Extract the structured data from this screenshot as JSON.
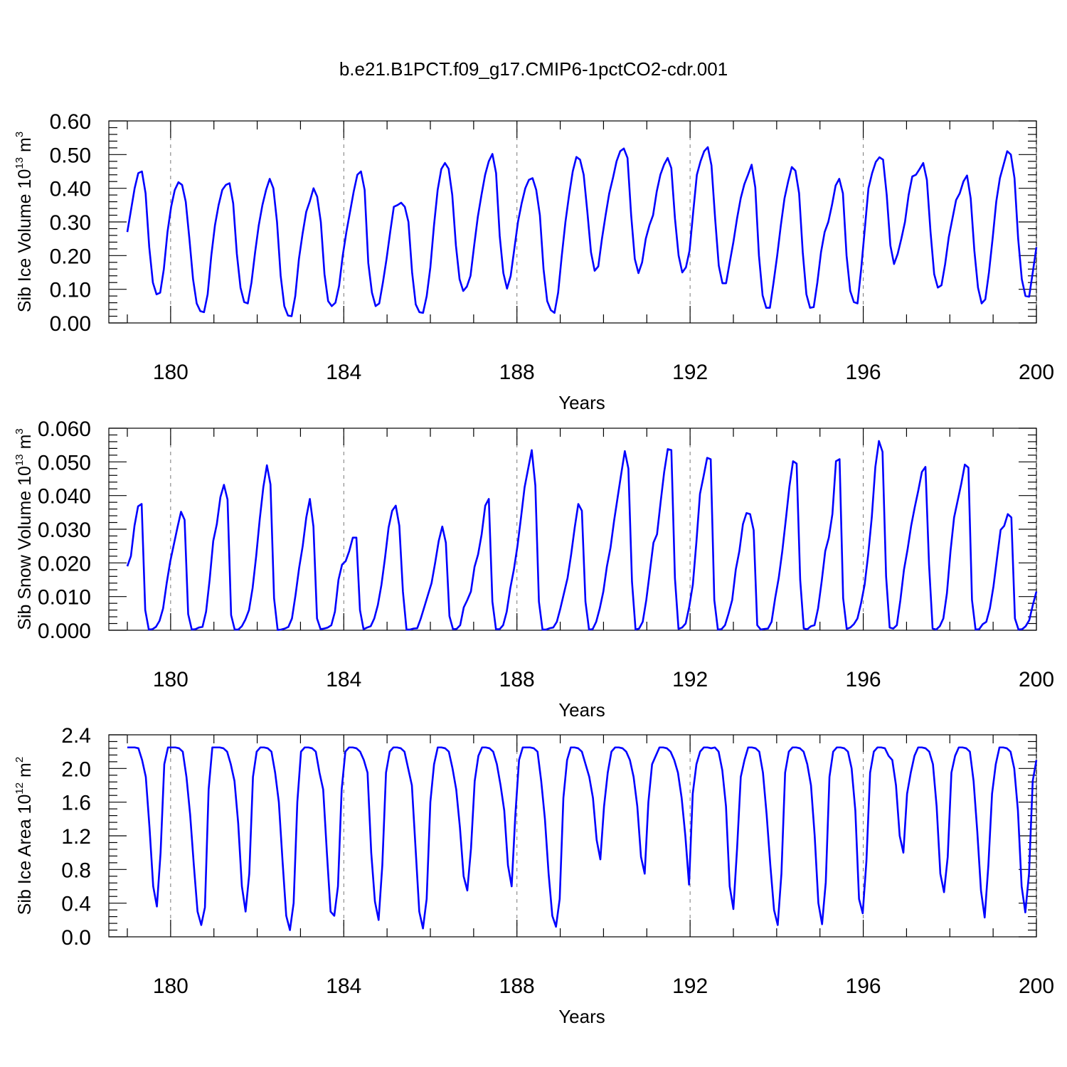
{
  "title": "b.e21.B1PCT.f09_g17.CMIP6-1pctCO2-cdr.001",
  "colors": {
    "series": "#0000ff",
    "frame": "#000000",
    "grid": "#777777"
  },
  "chart_data": [
    {
      "type": "line",
      "ylabel": "Sib Ice Volume",
      "yunit_base": "10",
      "yunit_exp": "13",
      "yunit_tail": "m",
      "yunit_tail_exp": "3",
      "xlabel": "Years",
      "xlim": [
        179,
        200
      ],
      "ylim": [
        0,
        0.6
      ],
      "xticks": [
        "180",
        "184",
        "188",
        "192",
        "196",
        "200"
      ],
      "yticks": [
        "0.00",
        "0.10",
        "0.20",
        "0.30",
        "0.40",
        "0.50",
        "0.60"
      ],
      "grid": "vertical dashed at labeled x ticks",
      "series": [
        {
          "values": [
            0.27,
            0.335,
            0.4,
            0.445,
            0.45,
            0.385,
            0.225,
            0.12,
            0.085,
            0.09,
            0.16,
            0.27,
            0.345,
            0.395,
            0.418,
            0.41,
            0.36,
            0.25,
            0.13,
            0.058,
            0.035,
            0.032,
            0.085,
            0.2,
            0.29,
            0.35,
            0.395,
            0.41,
            0.415,
            0.355,
            0.205,
            0.105,
            0.062,
            0.058,
            0.12,
            0.21,
            0.29,
            0.35,
            0.395,
            0.428,
            0.4,
            0.3,
            0.14,
            0.05,
            0.022,
            0.02,
            0.08,
            0.19,
            0.265,
            0.33,
            0.362,
            0.4,
            0.375,
            0.3,
            0.145,
            0.065,
            0.05,
            0.06,
            0.11,
            0.2,
            0.27,
            0.33,
            0.39,
            0.44,
            0.45,
            0.395,
            0.178,
            0.09,
            0.05,
            0.058,
            0.12,
            0.19,
            0.27,
            0.345,
            0.35,
            0.357,
            0.345,
            0.3,
            0.15,
            0.055,
            0.032,
            0.03,
            0.08,
            0.165,
            0.29,
            0.395,
            0.457,
            0.475,
            0.458,
            0.38,
            0.23,
            0.13,
            0.095,
            0.108,
            0.14,
            0.23,
            0.315,
            0.38,
            0.44,
            0.48,
            0.502,
            0.445,
            0.258,
            0.148,
            0.102,
            0.14,
            0.22,
            0.3,
            0.355,
            0.4,
            0.425,
            0.43,
            0.395,
            0.32,
            0.16,
            0.065,
            0.038,
            0.03,
            0.09,
            0.2,
            0.3,
            0.38,
            0.45,
            0.493,
            0.485,
            0.44,
            0.33,
            0.21,
            0.155,
            0.168,
            0.25,
            0.32,
            0.385,
            0.43,
            0.48,
            0.51,
            0.518,
            0.49,
            0.32,
            0.19,
            0.148,
            0.18,
            0.25,
            0.29,
            0.32,
            0.39,
            0.44,
            0.47,
            0.49,
            0.46,
            0.31,
            0.2,
            0.15,
            0.165,
            0.215,
            0.33,
            0.44,
            0.48,
            0.51,
            0.522,
            0.468,
            0.31,
            0.17,
            0.118,
            0.118,
            0.18,
            0.24,
            0.31,
            0.37,
            0.412,
            0.44,
            0.47,
            0.402,
            0.2,
            0.082,
            0.045,
            0.045,
            0.12,
            0.2,
            0.29,
            0.37,
            0.42,
            0.463,
            0.452,
            0.385,
            0.21,
            0.085,
            0.045,
            0.047,
            0.12,
            0.21,
            0.27,
            0.3,
            0.35,
            0.408,
            0.428,
            0.385,
            0.2,
            0.095,
            0.062,
            0.058,
            0.16,
            0.28,
            0.4,
            0.445,
            0.478,
            0.492,
            0.485,
            0.38,
            0.23,
            0.175,
            0.205,
            0.25,
            0.3,
            0.38,
            0.435,
            0.44,
            0.457,
            0.475,
            0.425,
            0.27,
            0.145,
            0.105,
            0.112,
            0.175,
            0.255,
            0.31,
            0.365,
            0.385,
            0.42,
            0.438,
            0.37,
            0.215,
            0.105,
            0.058,
            0.07,
            0.15,
            0.25,
            0.36,
            0.43,
            0.47,
            0.51,
            0.5,
            0.43,
            0.25,
            0.13,
            0.08,
            0.078,
            0.15,
            0.225
          ]
        }
      ]
    },
    {
      "type": "line",
      "ylabel": "Sib Snow Volume",
      "yunit_base": "10",
      "yunit_exp": "13",
      "yunit_tail": "m",
      "yunit_tail_exp": "3",
      "xlabel": "Years",
      "xlim": [
        179,
        200
      ],
      "ylim": [
        0,
        0.06
      ],
      "xticks": [
        "180",
        "184",
        "188",
        "192",
        "196",
        "200"
      ],
      "yticks": [
        "0.000",
        "0.010",
        "0.020",
        "0.030",
        "0.040",
        "0.050",
        "0.060"
      ],
      "grid": "vertical dashed at labeled x ticks",
      "series": [
        {
          "values": [
            0.019,
            0.022,
            0.031,
            0.0368,
            0.0375,
            0.006,
            0.0002,
            0.0003,
            0.001,
            0.0028,
            0.0065,
            0.014,
            0.0205,
            0.0255,
            0.0305,
            0.0352,
            0.0328,
            0.0048,
            0.0002,
            0.0003,
            0.0008,
            0.001,
            0.0055,
            0.015,
            0.0265,
            0.0315,
            0.0395,
            0.0432,
            0.0388,
            0.0045,
            0.0002,
            0.0002,
            0.0012,
            0.0032,
            0.006,
            0.0125,
            0.022,
            0.033,
            0.0425,
            0.049,
            0.0433,
            0.0095,
            0.0001,
            0.0002,
            0.0005,
            0.001,
            0.0035,
            0.0105,
            0.0185,
            0.025,
            0.0335,
            0.039,
            0.0308,
            0.0035,
            0.0003,
            0.0005,
            0.0008,
            0.0015,
            0.0055,
            0.015,
            0.0195,
            0.0205,
            0.0235,
            0.0275,
            0.0275,
            0.006,
            0.0003,
            0.0008,
            0.0012,
            0.0035,
            0.0075,
            0.0135,
            0.0215,
            0.0305,
            0.0355,
            0.037,
            0.031,
            0.0115,
            0.0002,
            0.0002,
            0.0005,
            0.0006,
            0.0035,
            0.007,
            0.0105,
            0.014,
            0.02,
            0.0265,
            0.0308,
            0.026,
            0.0042,
            0.0003,
            0.0004,
            0.0015,
            0.0068,
            0.009,
            0.0115,
            0.0188,
            0.0225,
            0.0285,
            0.037,
            0.039,
            0.0085,
            0.0003,
            0.0003,
            0.0015,
            0.0055,
            0.0125,
            0.018,
            0.025,
            0.0335,
            0.0425,
            0.048,
            0.0535,
            0.043,
            0.0085,
            0.0002,
            0.0002,
            0.0006,
            0.0008,
            0.0025,
            0.0065,
            0.011,
            0.0155,
            0.0225,
            0.0305,
            0.0375,
            0.0355,
            0.0085,
            0.0002,
            0.0003,
            0.0025,
            0.0065,
            0.0115,
            0.019,
            0.0245,
            0.0325,
            0.0395,
            0.0465,
            0.0532,
            0.048,
            0.0145,
            0.0002,
            0.0005,
            0.0025,
            0.009,
            0.0175,
            0.026,
            0.0285,
            0.038,
            0.047,
            0.0538,
            0.0535,
            0.0155,
            0.0004,
            0.0008,
            0.002,
            0.007,
            0.0135,
            0.0262,
            0.0405,
            0.0457,
            0.0512,
            0.0508,
            0.009,
            0.0002,
            0.0003,
            0.0015,
            0.005,
            0.009,
            0.018,
            0.0235,
            0.0315,
            0.0348,
            0.0345,
            0.0297,
            0.0015,
            0.0002,
            0.0004,
            0.0005,
            0.0025,
            0.0095,
            0.0155,
            0.0235,
            0.033,
            0.0428,
            0.0502,
            0.0495,
            0.015,
            0.0005,
            0.0003,
            0.0012,
            0.0015,
            0.0065,
            0.0145,
            0.0235,
            0.0275,
            0.0345,
            0.0502,
            0.0508,
            0.0095,
            0.0004,
            0.0008,
            0.0018,
            0.0035,
            0.008,
            0.0135,
            0.0225,
            0.0335,
            0.0485,
            0.0562,
            0.053,
            0.016,
            0.0008,
            0.0005,
            0.0015,
            0.009,
            0.018,
            0.024,
            0.031,
            0.0365,
            0.0415,
            0.047,
            0.0485,
            0.0195,
            0.0005,
            0.0002,
            0.0012,
            0.0035,
            0.011,
            0.0235,
            0.0335,
            0.0385,
            0.0435,
            0.0492,
            0.0483,
            0.009,
            0.0002,
            0.0003,
            0.0018,
            0.0025,
            0.0065,
            0.013,
            0.0215,
            0.0298,
            0.031,
            0.0345,
            0.0335,
            0.0035,
            0.0002,
            0.0003,
            0.0012,
            0.003,
            0.0075,
            0.0115
          ]
        }
      ]
    },
    {
      "type": "line",
      "ylabel": "Sib Ice Area",
      "yunit_base": "10",
      "yunit_exp": "12",
      "yunit_tail": "m",
      "yunit_tail_exp": "2",
      "xlabel": "Years",
      "xlim": [
        179,
        200
      ],
      "ylim": [
        0,
        2.4
      ],
      "xticks": [
        "180",
        "184",
        "188",
        "192",
        "196",
        "200"
      ],
      "yticks": [
        "0.0",
        "0.4",
        "0.8",
        "1.2",
        "1.6",
        "2.0",
        "2.4"
      ],
      "grid": "vertical dashed at labeled x ticks",
      "series": [
        {
          "values": [
            2.25,
            2.25,
            2.25,
            2.24,
            2.1,
            1.9,
            1.3,
            0.6,
            0.36,
            1.0,
            2.05,
            2.25,
            2.25,
            2.25,
            2.24,
            2.2,
            1.9,
            1.45,
            0.85,
            0.3,
            0.14,
            0.35,
            1.75,
            2.25,
            2.25,
            2.25,
            2.24,
            2.2,
            2.05,
            1.85,
            1.35,
            0.6,
            0.3,
            0.75,
            1.9,
            2.2,
            2.25,
            2.25,
            2.24,
            2.2,
            1.95,
            1.6,
            0.9,
            0.25,
            0.08,
            0.4,
            1.6,
            2.2,
            2.25,
            2.25,
            2.24,
            2.2,
            1.95,
            1.75,
            1.0,
            0.3,
            0.25,
            0.6,
            1.75,
            2.2,
            2.25,
            2.25,
            2.24,
            2.2,
            2.1,
            1.95,
            1.0,
            0.42,
            0.2,
            0.85,
            1.95,
            2.2,
            2.25,
            2.25,
            2.24,
            2.2,
            2.0,
            1.8,
            1.05,
            0.3,
            0.1,
            0.45,
            1.6,
            2.05,
            2.25,
            2.25,
            2.24,
            2.2,
            2.0,
            1.75,
            1.3,
            0.72,
            0.55,
            1.05,
            1.85,
            2.15,
            2.25,
            2.25,
            2.24,
            2.2,
            2.05,
            1.8,
            1.5,
            0.85,
            0.6,
            1.45,
            2.1,
            2.25,
            2.25,
            2.25,
            2.24,
            2.2,
            1.85,
            1.4,
            0.75,
            0.25,
            0.12,
            0.45,
            1.65,
            2.1,
            2.25,
            2.25,
            2.24,
            2.2,
            2.05,
            1.9,
            1.65,
            1.15,
            0.92,
            1.55,
            1.95,
            2.2,
            2.25,
            2.25,
            2.24,
            2.2,
            2.1,
            1.9,
            1.55,
            0.95,
            0.75,
            1.6,
            2.05,
            2.15,
            2.25,
            2.25,
            2.24,
            2.2,
            2.1,
            1.95,
            1.65,
            1.2,
            0.62,
            1.7,
            2.05,
            2.2,
            2.25,
            2.25,
            2.24,
            2.25,
            2.2,
            1.98,
            1.55,
            0.6,
            0.33,
            1.05,
            1.9,
            2.1,
            2.25,
            2.25,
            2.24,
            2.2,
            1.95,
            1.45,
            0.85,
            0.32,
            0.14,
            0.75,
            1.95,
            2.2,
            2.25,
            2.25,
            2.24,
            2.2,
            2.05,
            1.8,
            1.2,
            0.4,
            0.15,
            0.65,
            1.9,
            2.2,
            2.25,
            2.25,
            2.24,
            2.2,
            2.0,
            1.5,
            0.45,
            0.28,
            0.9,
            1.95,
            2.2,
            2.25,
            2.25,
            2.24,
            2.15,
            2.1,
            1.8,
            1.2,
            1.0,
            1.7,
            1.95,
            2.15,
            2.25,
            2.25,
            2.24,
            2.2,
            2.05,
            1.55,
            0.75,
            0.53,
            0.95,
            1.95,
            2.15,
            2.25,
            2.25,
            2.24,
            2.2,
            1.85,
            1.25,
            0.55,
            0.23,
            0.85,
            1.7,
            2.05,
            2.25,
            2.25,
            2.24,
            2.2,
            2.0,
            1.5,
            0.6,
            0.29,
            0.75,
            1.85,
            2.1
          ]
        }
      ]
    }
  ]
}
